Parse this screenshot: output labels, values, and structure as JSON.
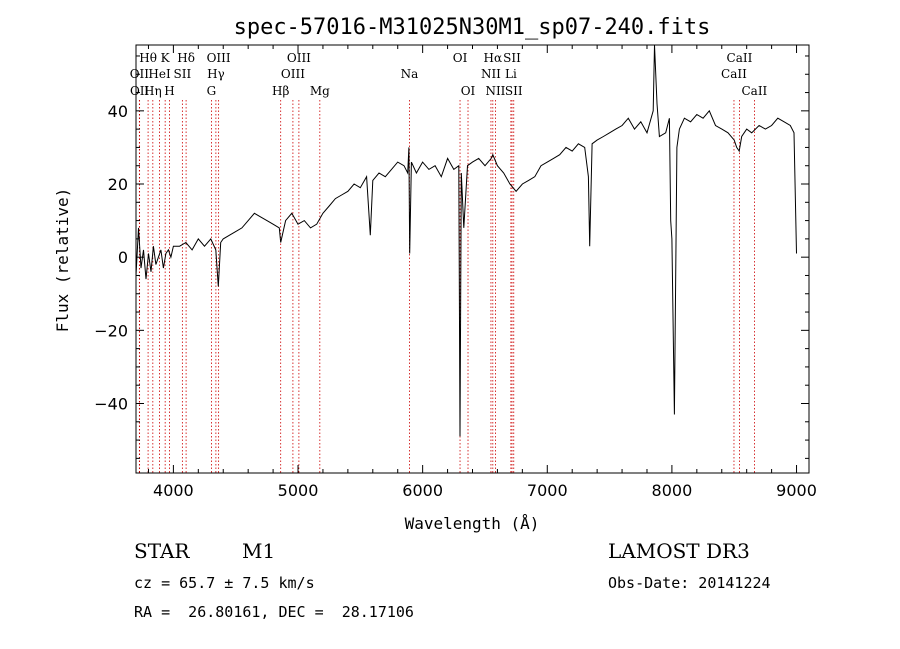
{
  "chart_data": {
    "type": "line",
    "title": "spec-57016-M31025N30M1_sp07-240.fits",
    "xlabel": "Wavelength (Å)",
    "ylabel": "Flux (relative)",
    "xlim": [
      3700,
      9100
    ],
    "ylim": [
      -59,
      58
    ],
    "x_ticks": [
      4000,
      5000,
      6000,
      7000,
      8000,
      9000
    ],
    "y_ticks": [
      -40,
      -20,
      0,
      20,
      40
    ],
    "grid": false,
    "series": [
      {
        "x": [
          3700,
          3720,
          3740,
          3760,
          3780,
          3800,
          3820,
          3840,
          3860,
          3880,
          3900,
          3920,
          3940,
          3960,
          3980,
          4000,
          4050,
          4100,
          4150,
          4200,
          4250,
          4300,
          4340,
          4360,
          4380,
          4400,
          4450,
          4500,
          4550,
          4600,
          4650,
          4700,
          4750,
          4800,
          4850,
          4861,
          4900,
          4950,
          5000,
          5050,
          5100,
          5150,
          5200,
          5250,
          5300,
          5350,
          5400,
          5450,
          5500,
          5550,
          5580,
          5600,
          5650,
          5700,
          5750,
          5800,
          5850,
          5880,
          5890,
          5896,
          5910,
          5950,
          6000,
          6050,
          6100,
          6150,
          6200,
          6250,
          6290,
          6300,
          6310,
          6330,
          6360,
          6400,
          6450,
          6500,
          6550,
          6563,
          6600,
          6650,
          6700,
          6750,
          6800,
          6850,
          6900,
          6950,
          7000,
          7050,
          7100,
          7150,
          7200,
          7250,
          7300,
          7330,
          7340,
          7360,
          7400,
          7450,
          7500,
          7550,
          7600,
          7650,
          7700,
          7750,
          7800,
          7850,
          7860,
          7880,
          7900,
          7950,
          7980,
          7990,
          8000,
          8010,
          8020,
          8040,
          8060,
          8100,
          8150,
          8200,
          8250,
          8300,
          8350,
          8400,
          8450,
          8500,
          8520,
          8540,
          8560,
          8600,
          8640,
          8700,
          8750,
          8800,
          8850,
          8900,
          8950,
          8980,
          9000
        ],
        "y": [
          -5,
          8,
          -3,
          2,
          -6,
          1,
          -4,
          3,
          -2,
          0,
          2,
          -3,
          1,
          2,
          0,
          3,
          3,
          4,
          2,
          5,
          3,
          5,
          2,
          -8,
          4,
          5,
          6,
          7,
          8,
          10,
          12,
          11,
          10,
          9,
          8,
          4,
          10,
          12,
          9,
          10,
          8,
          9,
          12,
          14,
          16,
          17,
          18,
          20,
          19,
          22,
          6,
          21,
          23,
          22,
          24,
          26,
          25,
          23,
          30,
          1,
          26,
          23,
          26,
          24,
          25,
          22,
          27,
          24,
          25,
          -49,
          23,
          8,
          25,
          26,
          27,
          25,
          27,
          28,
          25,
          23,
          20,
          18,
          20,
          21,
          22,
          25,
          26,
          27,
          28,
          30,
          29,
          31,
          30,
          22,
          3,
          31,
          32,
          33,
          34,
          35,
          36,
          38,
          35,
          37,
          34,
          40,
          58,
          42,
          33,
          34,
          38,
          10,
          5,
          -20,
          -43,
          30,
          35,
          38,
          37,
          39,
          38,
          40,
          36,
          35,
          34,
          32,
          30,
          29,
          33,
          35,
          34,
          36,
          35,
          36,
          38,
          37,
          36,
          34,
          1
        ],
        "name": ""
      }
    ],
    "emission_lines": [
      {
        "label": "Hθ",
        "x": 3797,
        "row": 1
      },
      {
        "label": "OII",
        "x": 3727,
        "row": 2
      },
      {
        "label": "OII",
        "x": 3729,
        "row": 3
      },
      {
        "label": "K",
        "x": 3934,
        "row": 1
      },
      {
        "label": "HeI",
        "x": 3889,
        "row": 2
      },
      {
        "label": "Hη",
        "x": 3835,
        "row": 3
      },
      {
        "label": "Hδ",
        "x": 4102,
        "row": 1
      },
      {
        "label": "SII",
        "x": 4072,
        "row": 2
      },
      {
        "label": "H",
        "x": 3969,
        "row": 3
      },
      {
        "label": "OIII",
        "x": 4363,
        "row": 1
      },
      {
        "label": "Hγ",
        "x": 4341,
        "row": 2
      },
      {
        "label": "G",
        "x": 4305,
        "row": 3
      },
      {
        "label": "OIII",
        "x": 5007,
        "row": 1
      },
      {
        "label": "OIII",
        "x": 4959,
        "row": 2
      },
      {
        "label": "Hβ",
        "x": 4861,
        "row": 3
      },
      {
        "label": "Mg",
        "x": 5175,
        "row": 3
      },
      {
        "label": "Na",
        "x": 5894,
        "row": 2
      },
      {
        "label": "OI",
        "x": 6300,
        "row": 1
      },
      {
        "label": "OI",
        "x": 6364,
        "row": 3
      },
      {
        "label": "Hα",
        "x": 6563,
        "row": 1
      },
      {
        "label": "NII",
        "x": 6548,
        "row": 2
      },
      {
        "label": "NII",
        "x": 6584,
        "row": 3
      },
      {
        "label": "SII",
        "x": 6717,
        "row": 1
      },
      {
        "label": "Li",
        "x": 6708,
        "row": 2
      },
      {
        "label": "SII",
        "x": 6731,
        "row": 3
      },
      {
        "label": "CaII",
        "x": 8542,
        "row": 1
      },
      {
        "label": "CaII",
        "x": 8498,
        "row": 2
      },
      {
        "label": "CaII",
        "x": 8662,
        "row": 3
      }
    ],
    "colors": {
      "spectrum": "#000000",
      "emission_line": "#cc0000",
      "axes": "#000000"
    }
  },
  "info": {
    "class": "STAR",
    "subclass": "M1",
    "survey": "LAMOST DR3",
    "redshift": "cz = 65.7 ± 7.5 km/s",
    "obs_date": "Obs-Date: 20141224",
    "coords": "RA =  26.80161, DEC =  28.17106"
  }
}
